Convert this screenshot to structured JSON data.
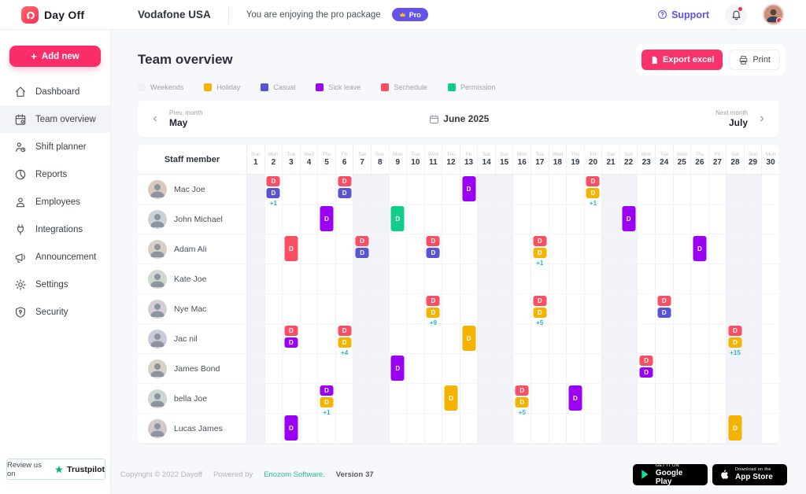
{
  "topbar": {
    "brand": "Day Off",
    "company": "Vodafone USA",
    "package_note": "You are enjoying the pro package",
    "pro_badge": "Pro",
    "support_label": "Support"
  },
  "sidebar": {
    "add_new_label": "Add new",
    "items": [
      {
        "label": "Dashboard",
        "icon": "dashboard",
        "active": false
      },
      {
        "label": "Team overview",
        "icon": "team-overview",
        "active": true
      },
      {
        "label": "Shift planner",
        "icon": "shift-planner",
        "active": false
      },
      {
        "label": "Reports",
        "icon": "reports",
        "active": false
      },
      {
        "label": "Employees",
        "icon": "employees",
        "active": false
      },
      {
        "label": "Integrations",
        "icon": "integrations",
        "active": false
      },
      {
        "label": "Announcement",
        "icon": "announcement",
        "active": false
      },
      {
        "label": "Settings",
        "icon": "settings",
        "active": false
      },
      {
        "label": "Security",
        "icon": "security",
        "active": false
      }
    ],
    "review_text": "Review us on",
    "review_brand": "Trustpilot"
  },
  "main": {
    "title": "Team overview",
    "export_label": "Export excel",
    "print_label": "Print",
    "legend": [
      {
        "label": "Weekends",
        "color": "#F0F1F7"
      },
      {
        "label": "Holiday",
        "color": "#F5B301"
      },
      {
        "label": "Casual",
        "color": "#5A52D5"
      },
      {
        "label": "Sick leave",
        "color": "#9B00F5"
      },
      {
        "label": "Sechedule",
        "color": "#FB4E63"
      },
      {
        "label": "Permission",
        "color": "#10CD8C"
      }
    ],
    "month_nav": {
      "prev_label": "Prev, month",
      "prev_month": "May",
      "current": "June 2025",
      "next_label": "Next month",
      "next_month": "July"
    }
  },
  "colors": {
    "holiday": "#F5B301",
    "casual": "#5A52D5",
    "sick": "#9B00F5",
    "schedule": "#FB4E63",
    "permission": "#10CD8C",
    "more_text": "#2AB5C9"
  },
  "calendar": {
    "staff_header": "Staff member",
    "badge_letter": "D",
    "days": [
      {
        "n": 1,
        "dow": "Sun",
        "we": true
      },
      {
        "n": 2,
        "dow": "Mon",
        "we": false
      },
      {
        "n": 3,
        "dow": "Tue",
        "we": false
      },
      {
        "n": 4,
        "dow": "Wed",
        "we": false
      },
      {
        "n": 5,
        "dow": "Thu",
        "we": false
      },
      {
        "n": 6,
        "dow": "Fri",
        "we": false
      },
      {
        "n": 7,
        "dow": "Sat",
        "we": true
      },
      {
        "n": 8,
        "dow": "Sun",
        "we": true
      },
      {
        "n": 9,
        "dow": "Mon",
        "we": false
      },
      {
        "n": 10,
        "dow": "Tue",
        "we": false
      },
      {
        "n": 11,
        "dow": "Wed",
        "we": false
      },
      {
        "n": 12,
        "dow": "Thu",
        "we": false
      },
      {
        "n": 13,
        "dow": "Fri",
        "we": false
      },
      {
        "n": 14,
        "dow": "Sat",
        "we": true
      },
      {
        "n": 15,
        "dow": "Sun",
        "we": true
      },
      {
        "n": 16,
        "dow": "Mon",
        "we": false
      },
      {
        "n": 17,
        "dow": "Tue",
        "we": false
      },
      {
        "n": 18,
        "dow": "Wed",
        "we": false
      },
      {
        "n": 19,
        "dow": "Thu",
        "we": false
      },
      {
        "n": 20,
        "dow": "Fri",
        "we": false
      },
      {
        "n": 21,
        "dow": "Sat",
        "we": true
      },
      {
        "n": 22,
        "dow": "Sun",
        "we": true
      },
      {
        "n": 23,
        "dow": "Mon",
        "we": false
      },
      {
        "n": 24,
        "dow": "Tue",
        "we": false
      },
      {
        "n": 25,
        "dow": "Wed",
        "we": false
      },
      {
        "n": 26,
        "dow": "Thu",
        "we": false
      },
      {
        "n": 27,
        "dow": "Fri",
        "we": false
      },
      {
        "n": 28,
        "dow": "Sat",
        "we": true
      },
      {
        "n": 29,
        "dow": "Sun",
        "we": true
      },
      {
        "n": 30,
        "dow": "Mon",
        "we": false
      }
    ],
    "rows": [
      {
        "name": "Mac Joe",
        "badges": [
          {
            "day": 2,
            "items": [
              "schedule",
              "casual"
            ],
            "more": "+1"
          },
          {
            "day": 6,
            "items": [
              "schedule",
              "casual"
            ]
          },
          {
            "day": 13,
            "items": [
              "sick"
            ],
            "tall": true
          },
          {
            "day": 20,
            "items": [
              "schedule",
              "holiday"
            ],
            "more": "+1"
          }
        ]
      },
      {
        "name": "John Michael",
        "badges": [
          {
            "day": 5,
            "items": [
              "sick"
            ],
            "tall": true
          },
          {
            "day": 9,
            "items": [
              "permission"
            ],
            "tall": true
          },
          {
            "day": 22,
            "items": [
              "sick"
            ],
            "tall": true
          }
        ]
      },
      {
        "name": "Adam Ali",
        "badges": [
          {
            "day": 3,
            "items": [
              "schedule"
            ],
            "tall": true
          },
          {
            "day": 7,
            "items": [
              "schedule",
              "casual"
            ]
          },
          {
            "day": 11,
            "items": [
              "schedule",
              "casual"
            ]
          },
          {
            "day": 17,
            "items": [
              "schedule",
              "holiday"
            ],
            "more": "+1"
          },
          {
            "day": 26,
            "items": [
              "sick"
            ],
            "tall": true
          }
        ]
      },
      {
        "name": "Kate Joe",
        "badges": []
      },
      {
        "name": "Nye Mac",
        "badges": [
          {
            "day": 11,
            "items": [
              "schedule",
              "holiday"
            ],
            "more": "+9"
          },
          {
            "day": 17,
            "items": [
              "schedule",
              "holiday"
            ],
            "more": "+5"
          },
          {
            "day": 24,
            "items": [
              "schedule",
              "casual"
            ]
          }
        ]
      },
      {
        "name": "Jac nil",
        "badges": [
          {
            "day": 3,
            "items": [
              "schedule",
              "sick"
            ]
          },
          {
            "day": 6,
            "items": [
              "schedule",
              "holiday"
            ],
            "more": "+4"
          },
          {
            "day": 13,
            "items": [
              "holiday"
            ],
            "tall": true
          },
          {
            "day": 28,
            "items": [
              "schedule",
              "holiday"
            ],
            "more": "+15"
          }
        ]
      },
      {
        "name": "James Bond",
        "badges": [
          {
            "day": 9,
            "items": [
              "sick"
            ],
            "tall": true
          },
          {
            "day": 23,
            "items": [
              "schedule",
              "sick"
            ]
          }
        ]
      },
      {
        "name": "bella Joe",
        "badges": [
          {
            "day": 5,
            "items": [
              "sick",
              "holiday"
            ],
            "more": "+1"
          },
          {
            "day": 12,
            "items": [
              "holiday"
            ],
            "tall": true
          },
          {
            "day": 16,
            "items": [
              "schedule",
              "holiday"
            ],
            "more": "+5"
          },
          {
            "day": 19,
            "items": [
              "sick"
            ],
            "tall": true
          }
        ]
      },
      {
        "name": "Lucas James",
        "badges": [
          {
            "day": 3,
            "items": [
              "sick"
            ],
            "tall": true
          },
          {
            "day": 28,
            "items": [
              "holiday"
            ],
            "tall": true
          }
        ]
      }
    ]
  },
  "footer": {
    "copyright": "Copyright © 2022 Dayoff",
    "powered_by": "Powered by",
    "vendor": "Enozom Software.",
    "version_label": "Version",
    "version_value": "37",
    "play_top": "GET IT ON",
    "play_bottom": "Google Play",
    "appstore_top": "Download on the",
    "appstore_bottom": "App Store"
  }
}
